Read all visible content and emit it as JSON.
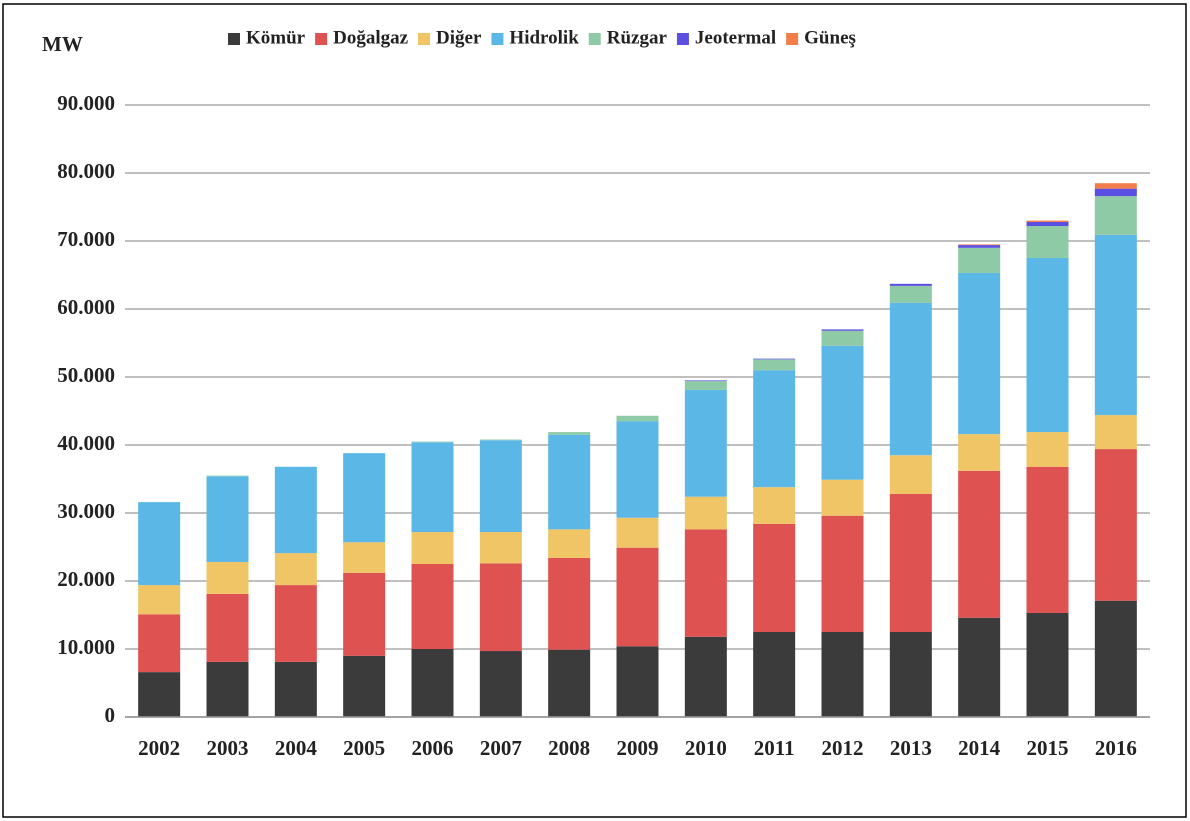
{
  "chart_data": {
    "type": "stacked_bar",
    "y_label": "MW",
    "categories": [
      "2002",
      "2003",
      "2004",
      "2005",
      "2006",
      "2007",
      "2008",
      "2009",
      "2010",
      "2011",
      "2012",
      "2013",
      "2014",
      "2015",
      "2016"
    ],
    "series": [
      {
        "name": "Kömür",
        "color": "#3b3b3b",
        "values": [
          6600,
          8100,
          8100,
          9000,
          10000,
          9700,
          9900,
          10400,
          11800,
          12500,
          12500,
          12500,
          14600,
          15300,
          17100
        ]
      },
      {
        "name": "Doğalgaz",
        "color": "#de5252",
        "values": [
          8500,
          10000,
          11300,
          12200,
          12500,
          12900,
          13500,
          14500,
          15800,
          15900,
          17100,
          20300,
          21600,
          21500,
          22300
        ]
      },
      {
        "name": "Diğer",
        "color": "#f0c566",
        "values": [
          4300,
          4700,
          4700,
          4500,
          4700,
          4600,
          4200,
          4400,
          4800,
          5400,
          5300,
          5700,
          5400,
          5100,
          5000
        ]
      },
      {
        "name": "Hidrolik",
        "color": "#5bb7e6",
        "values": [
          12200,
          12600,
          12700,
          13100,
          13200,
          13500,
          13900,
          14200,
          15700,
          17200,
          19700,
          22400,
          23700,
          25600,
          26500
        ]
      },
      {
        "name": "Rüzgar",
        "color": "#8fcaa6",
        "values": [
          0,
          100,
          0,
          0,
          100,
          100,
          400,
          800,
          1300,
          1600,
          2200,
          2500,
          3700,
          4700,
          5700
        ]
      },
      {
        "name": "Jeotermal",
        "color": "#5a4fe0",
        "values": [
          0,
          0,
          0,
          0,
          0,
          0,
          0,
          0,
          100,
          100,
          200,
          300,
          400,
          600,
          1100
        ]
      },
      {
        "name": "Güneş",
        "color": "#f27c4a",
        "values": [
          0,
          0,
          0,
          0,
          0,
          0,
          0,
          0,
          0,
          0,
          0,
          0,
          100,
          200,
          800
        ]
      }
    ],
    "ylim": [
      0,
      90000
    ],
    "yticks": [
      0,
      {
        "value": 10000,
        "label": "10.000"
      },
      {
        "value": 20000,
        "label": "20.000"
      },
      {
        "value": 30000,
        "label": "30.000"
      },
      {
        "value": 40000,
        "label": "40.000"
      },
      {
        "value": 50000,
        "label": "50.000"
      },
      {
        "value": 60000,
        "label": "60.000"
      },
      {
        "value": 70000,
        "label": "70.000"
      },
      {
        "value": 80000,
        "label": "80.000"
      },
      {
        "value": 90000,
        "label": "90.000"
      }
    ],
    "grid": true
  }
}
